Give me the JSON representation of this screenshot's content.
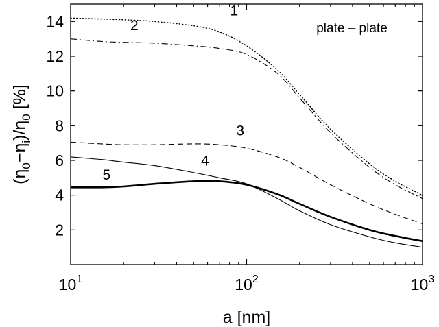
{
  "chart_data": {
    "type": "line",
    "xscale": "log",
    "xlim": [
      10,
      1000
    ],
    "ylim": [
      0,
      15
    ],
    "xlabel": "a [nm]",
    "ylabel": "(η0−ηi)/η0 [%]",
    "x_ticks": [
      {
        "base": "10",
        "exp": "1",
        "value": 10
      },
      {
        "base": "10",
        "exp": "2",
        "value": 100
      },
      {
        "base": "10",
        "exp": "3",
        "value": 1000
      }
    ],
    "y_ticks": [
      {
        "label": "2",
        "value": 2
      },
      {
        "label": "4",
        "value": 4
      },
      {
        "label": "6",
        "value": 6
      },
      {
        "label": "8",
        "value": 8
      },
      {
        "label": "10",
        "value": 10
      },
      {
        "label": "12",
        "value": 12
      },
      {
        "label": "14",
        "value": 14
      }
    ],
    "annotation": "plate – plate",
    "grid": false,
    "series": [
      {
        "name": "1",
        "style": "dotted",
        "label_at": [
          85,
          14.35
        ],
        "x": [
          10,
          20,
          30,
          50,
          70,
          100,
          150,
          200,
          300,
          500,
          700,
          1000
        ],
        "y": [
          14.2,
          14.1,
          14.0,
          13.75,
          13.4,
          12.6,
          11.2,
          9.8,
          7.8,
          5.8,
          4.8,
          4.0
        ]
      },
      {
        "name": "2",
        "style": "dashdot",
        "label_at": [
          23,
          13.5
        ],
        "x": [
          10,
          15,
          20,
          30,
          50,
          70,
          100,
          150,
          200,
          300,
          500,
          700,
          1000
        ],
        "y": [
          13.0,
          12.85,
          12.8,
          12.75,
          12.6,
          12.45,
          12.1,
          11.0,
          9.6,
          7.6,
          5.6,
          4.6,
          3.8
        ]
      },
      {
        "name": "3",
        "style": "dashed",
        "label_at": [
          92,
          7.45
        ],
        "x": [
          10,
          15,
          20,
          30,
          50,
          70,
          100,
          150,
          200,
          300,
          500,
          700,
          1000
        ],
        "y": [
          7.05,
          6.95,
          6.9,
          6.9,
          6.95,
          6.9,
          6.7,
          6.2,
          5.6,
          4.6,
          3.5,
          2.9,
          2.35
        ]
      },
      {
        "name": "4",
        "style": "solid-thin",
        "label_at": [
          58,
          5.7
        ],
        "x": [
          10,
          15,
          20,
          30,
          50,
          70,
          100,
          150,
          200,
          300,
          500,
          700,
          1000
        ],
        "y": [
          6.2,
          6.05,
          5.9,
          5.7,
          5.3,
          5.0,
          4.65,
          3.8,
          3.1,
          2.3,
          1.6,
          1.25,
          1.0
        ]
      },
      {
        "name": "5",
        "style": "solid-thick",
        "label_at": [
          16,
          4.9
        ],
        "x": [
          10,
          15,
          20,
          30,
          50,
          70,
          100,
          150,
          200,
          300,
          500,
          700,
          1000
        ],
        "y": [
          4.45,
          4.45,
          4.5,
          4.65,
          4.8,
          4.8,
          4.6,
          4.05,
          3.5,
          2.75,
          2.0,
          1.65,
          1.35
        ]
      }
    ]
  }
}
